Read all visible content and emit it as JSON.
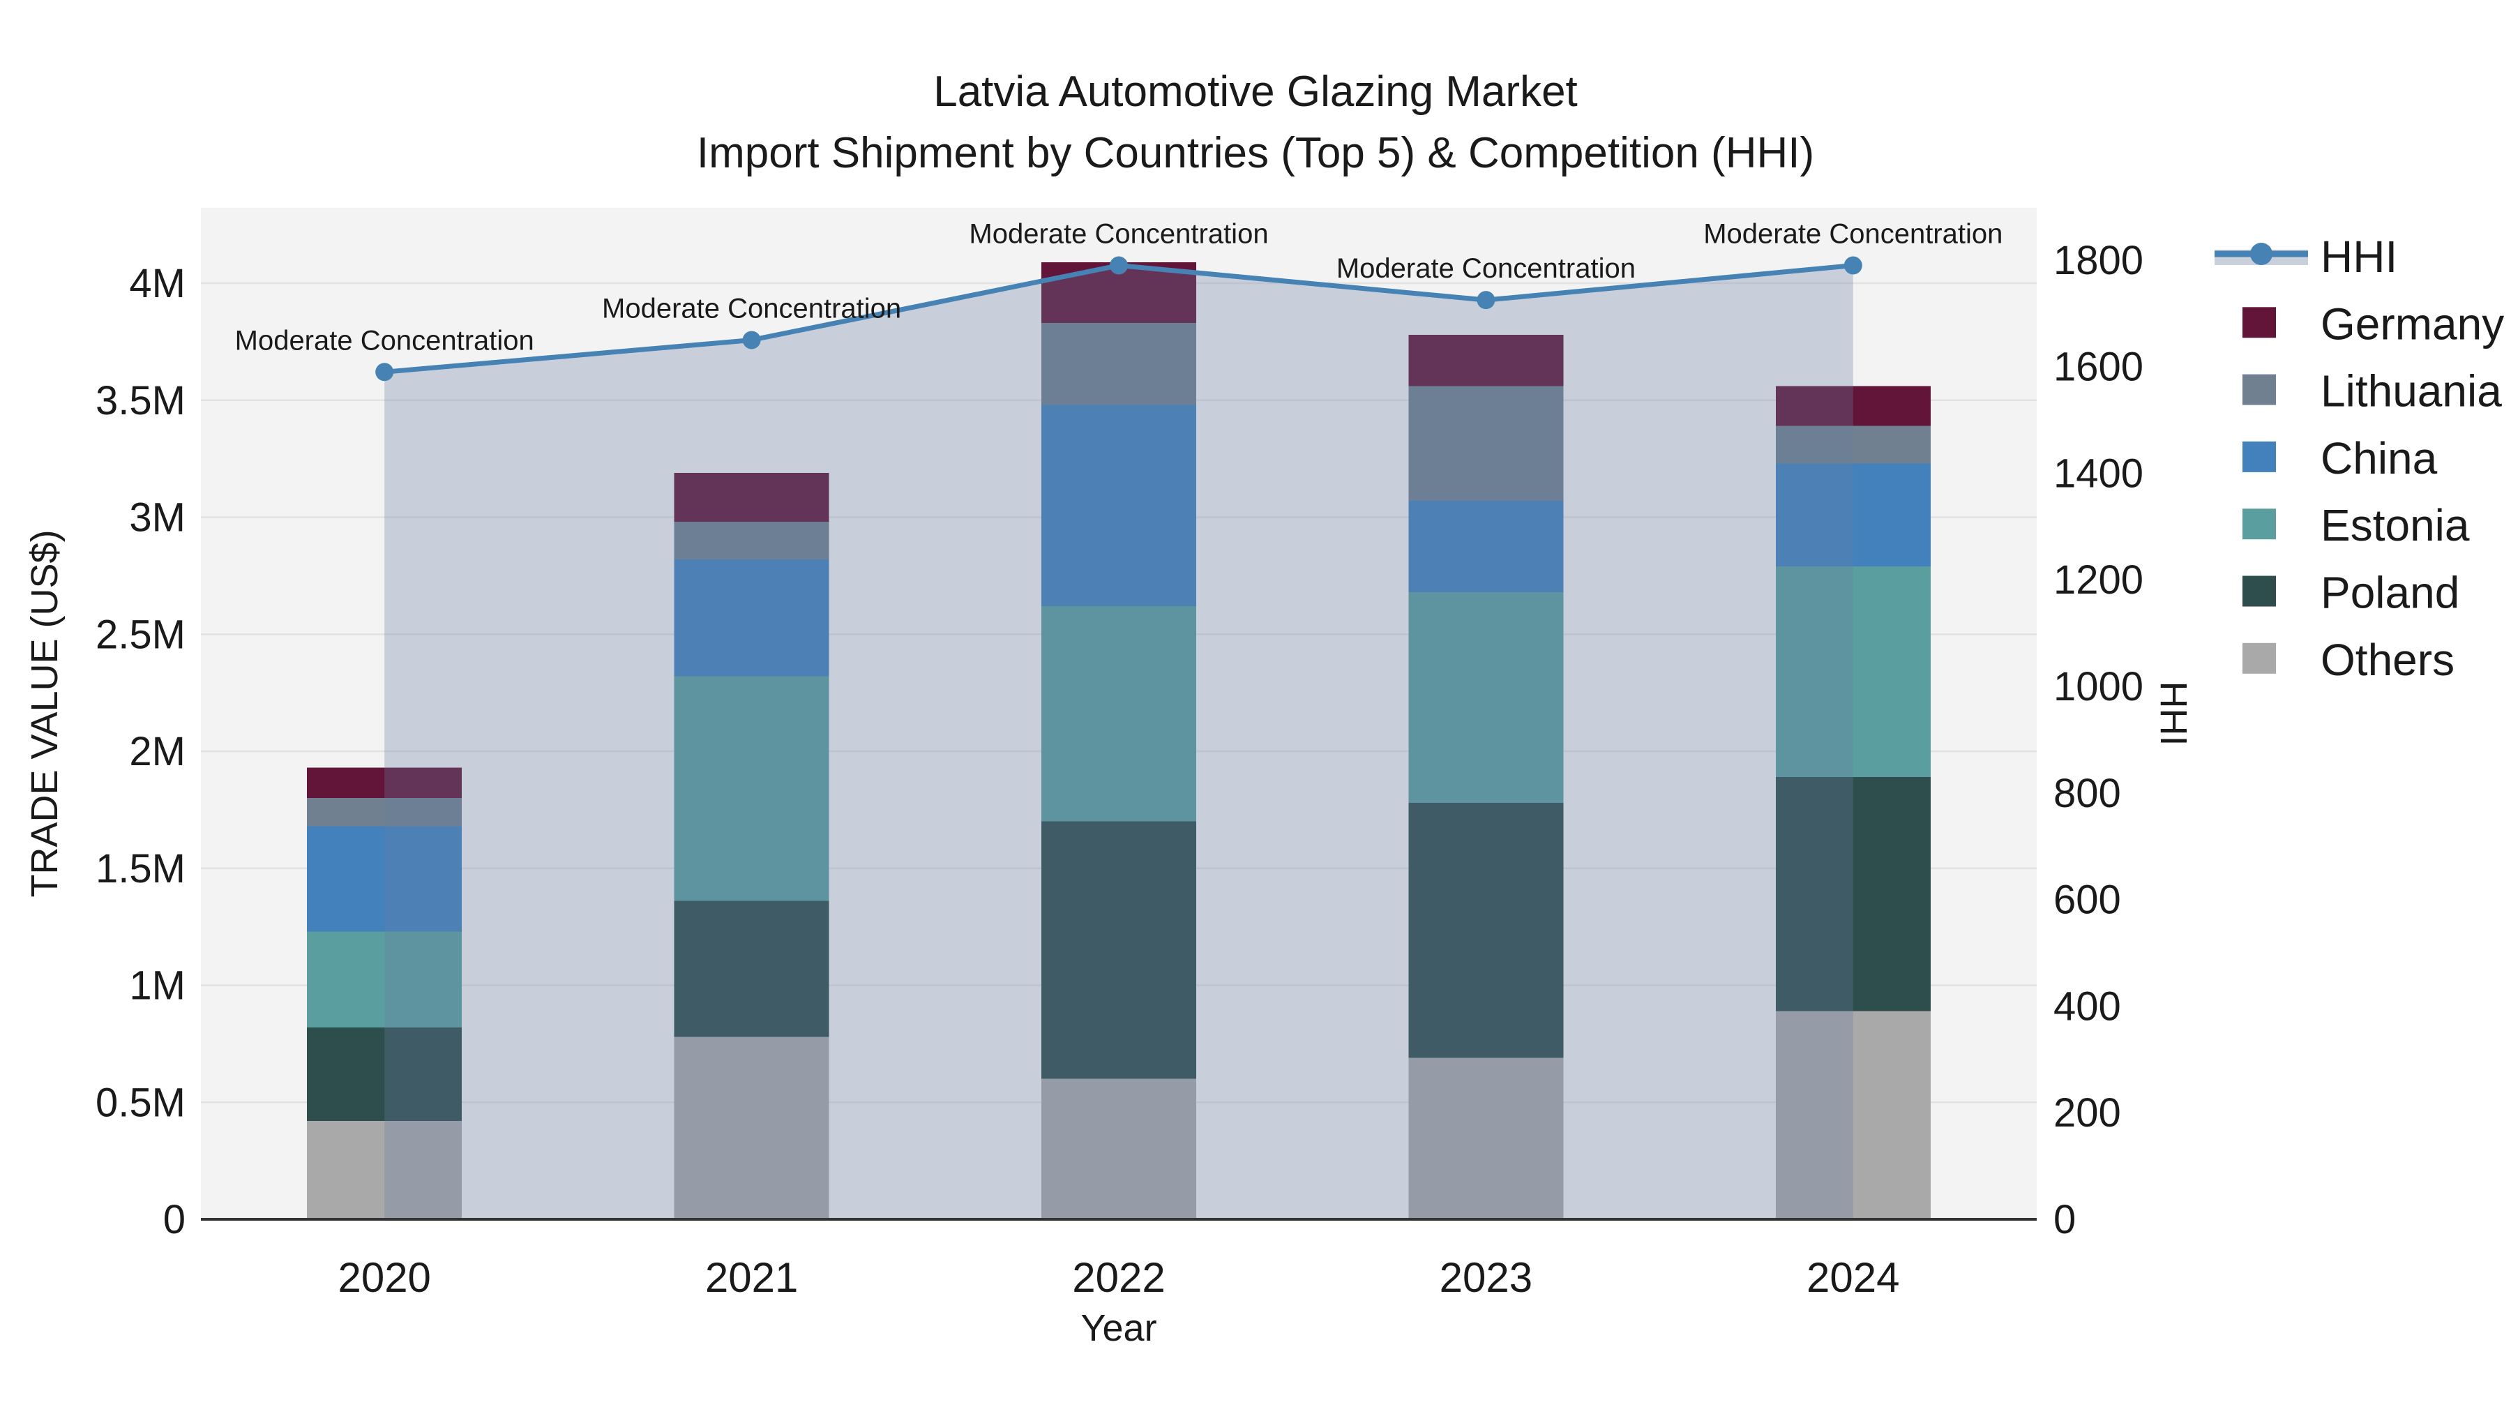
{
  "chart_data": {
    "type": "combo-stacked-bar-line",
    "title_line1": "Latvia Automotive Glazing Market",
    "title_line2": "Import Shipment by Countries (Top 5) & Competition (HHI)",
    "xlabel": "Year",
    "ylabel": "TRADE VALUE (US$)",
    "y2label": "HHI",
    "plot_bg": "#f3f3f3",
    "grid_color": "#e2e2e2",
    "axis_line_color": "#333333",
    "categories": [
      "2020",
      "2021",
      "2022",
      "2023",
      "2024"
    ],
    "bar_unit": "million US$",
    "series": [
      {
        "name": "Others",
        "color": "#a9a9a9",
        "values": [
          0.42,
          0.78,
          0.6,
          0.69,
          0.89
        ]
      },
      {
        "name": "Poland",
        "color": "#2e4d4d",
        "values": [
          0.4,
          0.58,
          1.1,
          1.09,
          1.0
        ]
      },
      {
        "name": "Estonia",
        "color": "#5b9ea0",
        "values": [
          0.41,
          0.96,
          0.92,
          0.9,
          0.9
        ]
      },
      {
        "name": "China",
        "color": "#4381bd",
        "values": [
          0.45,
          0.5,
          0.86,
          0.39,
          0.44
        ]
      },
      {
        "name": "Lithuania",
        "color": "#708090",
        "values": [
          0.12,
          0.16,
          0.35,
          0.49,
          0.16
        ]
      },
      {
        "name": "Germany",
        "color": "#621539",
        "values": [
          0.13,
          0.21,
          0.26,
          0.22,
          0.17
        ]
      }
    ],
    "bar_totals": [
      1.93,
      3.19,
      4.09,
      3.78,
      3.56
    ],
    "hhi": {
      "name": "HHI",
      "color": "#4682b4",
      "fill_color": "rgba(102,125,162,0.30)",
      "legend_band_color": "#c9d0db",
      "values": [
        1590,
        1650,
        1790,
        1725,
        1790
      ]
    },
    "annotations": [
      "Moderate Concentration",
      "Moderate Concentration",
      "Moderate Concentration",
      "Moderate Concentration",
      "Moderate Concentration"
    ],
    "y_axis": {
      "max": 4.322,
      "grid_step": 0.5,
      "ticks": [
        {
          "v": 0,
          "label": "0"
        },
        {
          "v": 0.5,
          "label": "0.5M"
        },
        {
          "v": 1,
          "label": "1M"
        },
        {
          "v": 1.5,
          "label": "1.5M"
        },
        {
          "v": 2,
          "label": "2M"
        },
        {
          "v": 2.5,
          "label": "2.5M"
        },
        {
          "v": 3,
          "label": "3M"
        },
        {
          "v": 3.5,
          "label": "3.5M"
        },
        {
          "v": 4,
          "label": "4M"
        }
      ]
    },
    "y2_axis": {
      "max": 1898,
      "ticks": [
        {
          "v": 0,
          "label": "0"
        },
        {
          "v": 200,
          "label": "200"
        },
        {
          "v": 400,
          "label": "400"
        },
        {
          "v": 600,
          "label": "600"
        },
        {
          "v": 800,
          "label": "800"
        },
        {
          "v": 1000,
          "label": "1000"
        },
        {
          "v": 1200,
          "label": "1200"
        },
        {
          "v": 1400,
          "label": "1400"
        },
        {
          "v": 1600,
          "label": "1600"
        },
        {
          "v": 1800,
          "label": "1800"
        }
      ]
    },
    "legend": [
      {
        "label": "HHI",
        "type": "line"
      },
      {
        "label": "Germany",
        "type": "swatch",
        "color": "#621539"
      },
      {
        "label": "Lithuania",
        "type": "swatch",
        "color": "#708090"
      },
      {
        "label": "China",
        "type": "swatch",
        "color": "#4381bd"
      },
      {
        "label": "Estonia",
        "type": "swatch",
        "color": "#5b9ea0"
      },
      {
        "label": "Poland",
        "type": "swatch",
        "color": "#2e4d4d"
      },
      {
        "label": "Others",
        "type": "swatch",
        "color": "#a9a9a9"
      }
    ]
  }
}
